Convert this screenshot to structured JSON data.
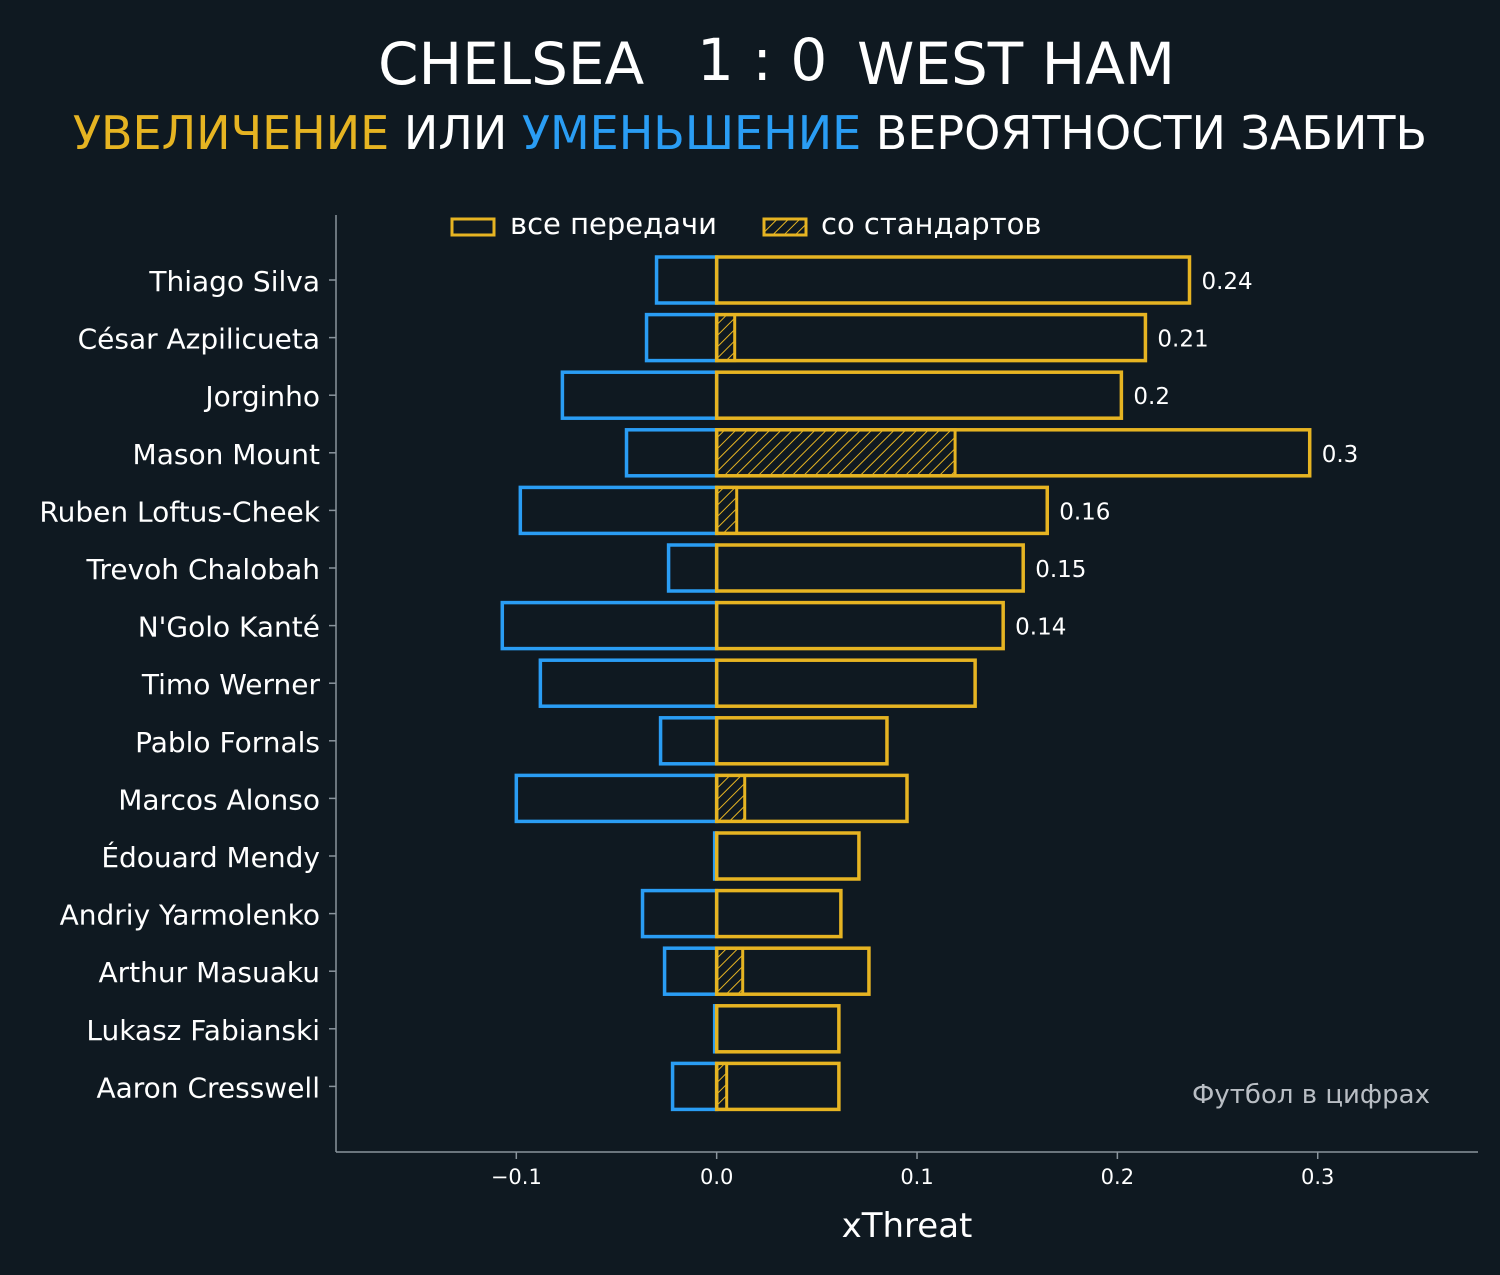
{
  "header": {
    "team_home": "CHELSEA",
    "score": "1 : 0",
    "team_away": "WEST HAM"
  },
  "subtitle": {
    "increase": "УВЕЛИЧЕНИЕ",
    "or": "ИЛИ",
    "decrease": "УМЕНЬШЕНИЕ",
    "rest": "ВЕРОЯТНОСТИ ЗАБИТЬ"
  },
  "watermark": "Футбол в цифрах",
  "colors": {
    "background": "#0f1921",
    "increase": "#e6b422",
    "decrease": "#2a9df4",
    "axis": "#8a949c"
  },
  "chart_data": {
    "type": "bar",
    "orientation": "horizontal",
    "xlabel": "xThreat",
    "xlim": [
      -0.19,
      0.38
    ],
    "xticks": [
      -0.1,
      0.0,
      0.1,
      0.2,
      0.3
    ],
    "xtick_labels": [
      "−0.1",
      "0.0",
      "0.1",
      "0.2",
      "0.3"
    ],
    "legend": {
      "placement": "top",
      "entries": [
        {
          "label": "все передачи",
          "style": "outline"
        },
        {
          "label": "со стандартов",
          "style": "hatched"
        }
      ]
    },
    "categories": [
      "Thiago Silva",
      "César Azpilicueta",
      "Jorginho",
      "Mason Mount",
      "Ruben Loftus-Cheek",
      "Trevoh Chalobah",
      "N'Golo Kanté",
      "Timo Werner",
      "Pablo Fornals",
      "Marcos Alonso",
      "Édouard Mendy",
      "Andriy Yarmolenko",
      "Arthur Masuaku",
      "Lukasz Fabianski",
      "Aaron Cresswell"
    ],
    "series": [
      {
        "name": "увеличение",
        "values": [
          0.236,
          0.214,
          0.202,
          0.296,
          0.165,
          0.153,
          0.143,
          0.129,
          0.085,
          0.095,
          0.071,
          0.062,
          0.076,
          0.061,
          0.061
        ]
      },
      {
        "name": "уменьшение",
        "values": [
          -0.03,
          -0.035,
          -0.077,
          -0.045,
          -0.098,
          -0.024,
          -0.107,
          -0.088,
          -0.028,
          -0.1,
          -0.001,
          -0.037,
          -0.026,
          -0.001,
          -0.022
        ]
      },
      {
        "name": "со стандартов",
        "values": [
          0,
          0.009,
          0,
          0.119,
          0.01,
          0,
          0,
          0,
          0,
          0.014,
          0,
          0,
          0.013,
          0,
          0.005
        ]
      }
    ],
    "data_labels": [
      "0.24",
      "0.21",
      "0.2",
      "0.3",
      "0.16",
      "0.15",
      "0.14",
      "",
      "",
      "",
      "",
      "",
      "",
      "",
      ""
    ]
  }
}
